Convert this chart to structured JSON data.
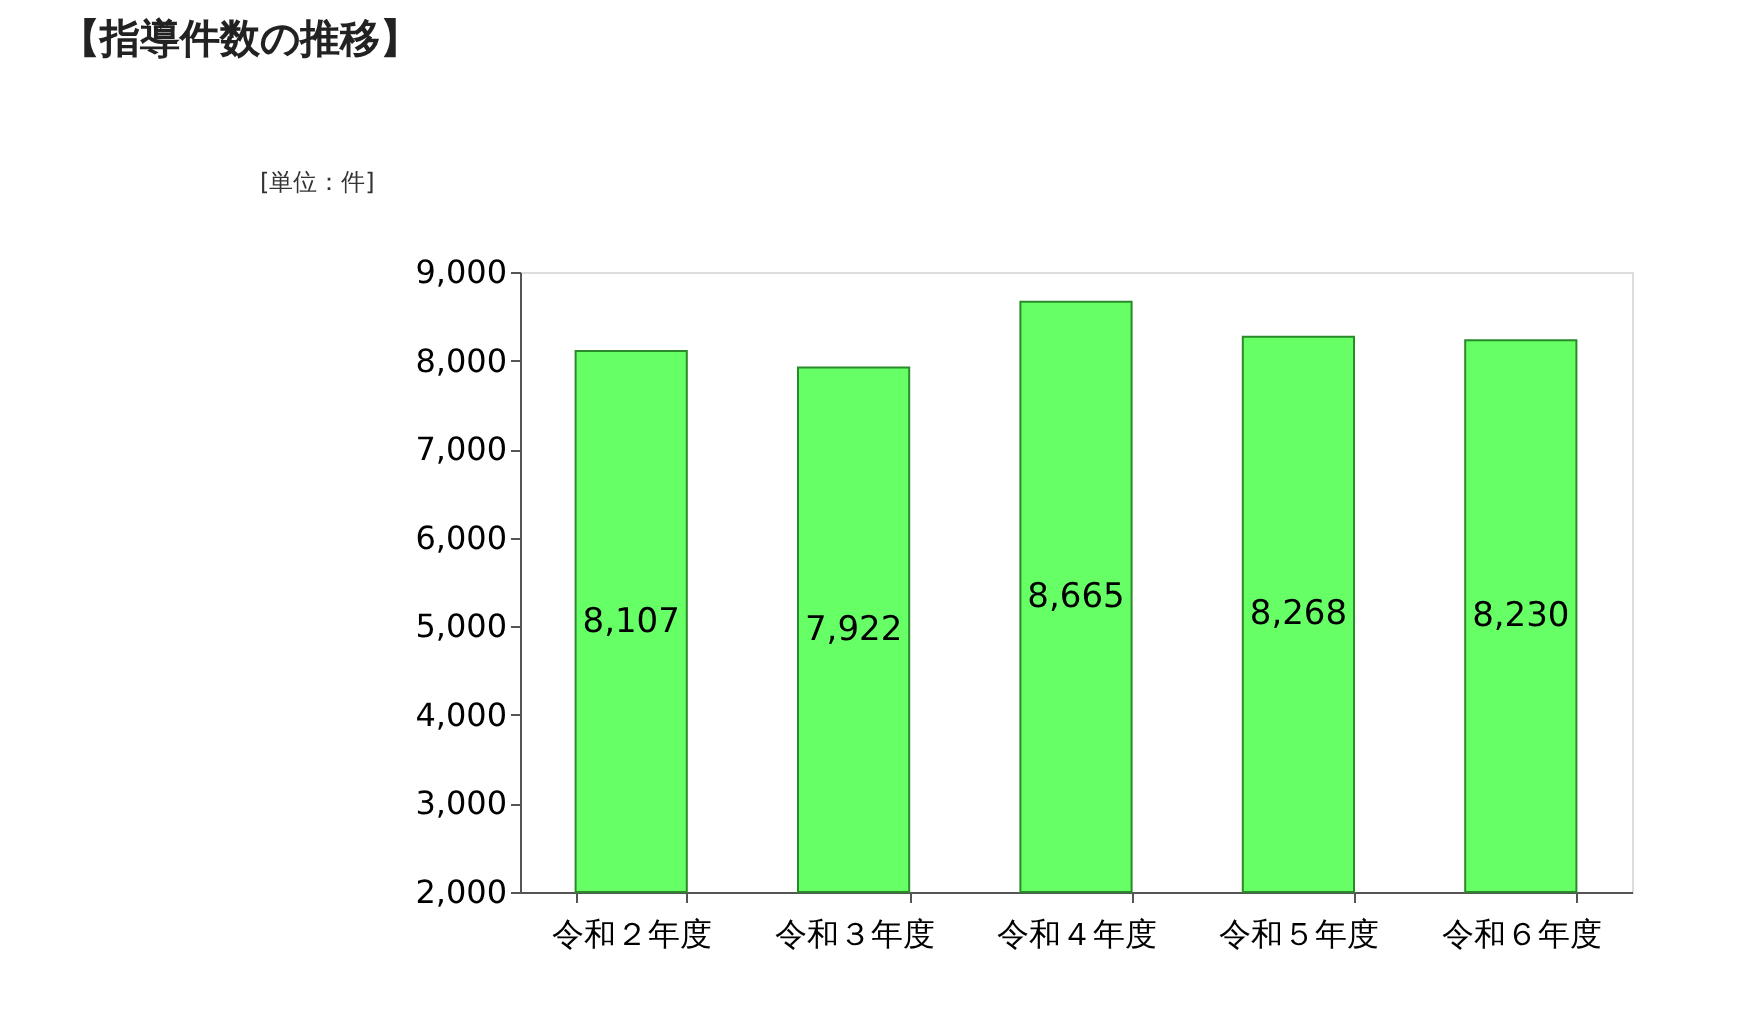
{
  "chart_data": {
    "type": "bar",
    "title": "【指導件数の推移】",
    "annotations": [
      "[単位：件]"
    ],
    "categories": [
      "令和２年度",
      "令和３年度",
      "令和４年度",
      "令和５年度",
      "令和６年度"
    ],
    "values": [
      8107,
      7922,
      8665,
      8268,
      8230
    ],
    "value_labels": [
      "8,107",
      "7,922",
      "8,665",
      "8,268",
      "8,230"
    ],
    "color": "#66ff66",
    "ylim": [
      2000,
      9000
    ],
    "yticks": [
      {
        "value": 2000,
        "label": "2,000"
      },
      {
        "value": 3000,
        "label": "3,000"
      },
      {
        "value": 4000,
        "label": "4,000"
      },
      {
        "value": 5000,
        "label": "5,000"
      },
      {
        "value": 6000,
        "label": "6,000"
      },
      {
        "value": 7000,
        "label": "7,000"
      },
      {
        "value": 8000,
        "label": "8,000"
      },
      {
        "value": 9000,
        "label": "9,000"
      }
    ],
    "grid": false
  }
}
